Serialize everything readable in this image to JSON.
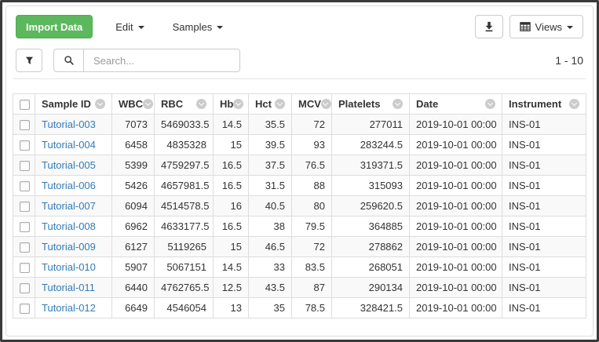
{
  "toolbar": {
    "import_button": "Import Data",
    "edit_button": "Edit",
    "samples_button": "Samples",
    "views_button": "Views"
  },
  "search": {
    "placeholder": "Search..."
  },
  "pagination": {
    "range": "1 - 10"
  },
  "colors": {
    "accent_green": "#5cb85c",
    "accent_green_border": "#4cae4c",
    "link": "#337ab7",
    "border": "#dddddd",
    "stripe": "#f9f9f9"
  },
  "icons": {
    "export": "download-icon",
    "views": "table-grid-icon",
    "filter": "filter-icon",
    "search": "search-icon",
    "column_menu": "chevron-down-circle-icon"
  },
  "table": {
    "columns": [
      {
        "label": "Sample ID",
        "key": "sample_id"
      },
      {
        "label": "WBC",
        "key": "wbc"
      },
      {
        "label": "RBC",
        "key": "rbc"
      },
      {
        "label": "Hb",
        "key": "hb"
      },
      {
        "label": "Hct",
        "key": "hct"
      },
      {
        "label": "MCV",
        "key": "mcv"
      },
      {
        "label": "Platelets",
        "key": "platelets"
      },
      {
        "label": "Date",
        "key": "date"
      },
      {
        "label": "Instrument",
        "key": "instrument"
      }
    ],
    "rows": [
      {
        "sample_id": "Tutorial-003",
        "wbc": "7073",
        "rbc": "5469033.5",
        "hb": "14.5",
        "hct": "35.5",
        "mcv": "72",
        "platelets": "277011",
        "date": "2019-10-01 00:00",
        "instrument": "INS-01"
      },
      {
        "sample_id": "Tutorial-004",
        "wbc": "6458",
        "rbc": "4835328",
        "hb": "15",
        "hct": "39.5",
        "mcv": "93",
        "platelets": "283244.5",
        "date": "2019-10-01 00:00",
        "instrument": "INS-01"
      },
      {
        "sample_id": "Tutorial-005",
        "wbc": "5399",
        "rbc": "4759297.5",
        "hb": "16.5",
        "hct": "37.5",
        "mcv": "76.5",
        "platelets": "319371.5",
        "date": "2019-10-01 00:00",
        "instrument": "INS-01"
      },
      {
        "sample_id": "Tutorial-006",
        "wbc": "5426",
        "rbc": "4657981.5",
        "hb": "16.5",
        "hct": "31.5",
        "mcv": "88",
        "platelets": "315093",
        "date": "2019-10-01 00:00",
        "instrument": "INS-01"
      },
      {
        "sample_id": "Tutorial-007",
        "wbc": "6094",
        "rbc": "4514578.5",
        "hb": "16",
        "hct": "40.5",
        "mcv": "80",
        "platelets": "259620.5",
        "date": "2019-10-01 00:00",
        "instrument": "INS-01"
      },
      {
        "sample_id": "Tutorial-008",
        "wbc": "6962",
        "rbc": "4633177.5",
        "hb": "16.5",
        "hct": "38",
        "mcv": "79.5",
        "platelets": "364885",
        "date": "2019-10-01 00:00",
        "instrument": "INS-01"
      },
      {
        "sample_id": "Tutorial-009",
        "wbc": "6127",
        "rbc": "5119265",
        "hb": "15",
        "hct": "46.5",
        "mcv": "72",
        "platelets": "278862",
        "date": "2019-10-01 00:00",
        "instrument": "INS-01"
      },
      {
        "sample_id": "Tutorial-010",
        "wbc": "5907",
        "rbc": "5067151",
        "hb": "14.5",
        "hct": "33",
        "mcv": "83.5",
        "platelets": "268051",
        "date": "2019-10-01 00:00",
        "instrument": "INS-01"
      },
      {
        "sample_id": "Tutorial-011",
        "wbc": "6440",
        "rbc": "4762765.5",
        "hb": "12.5",
        "hct": "43.5",
        "mcv": "87",
        "platelets": "290134",
        "date": "2019-10-01 00:00",
        "instrument": "INS-01"
      },
      {
        "sample_id": "Tutorial-012",
        "wbc": "6649",
        "rbc": "4546054",
        "hb": "13",
        "hct": "35",
        "mcv": "78.5",
        "platelets": "328421.5",
        "date": "2019-10-01 00:00",
        "instrument": "INS-01"
      }
    ]
  }
}
